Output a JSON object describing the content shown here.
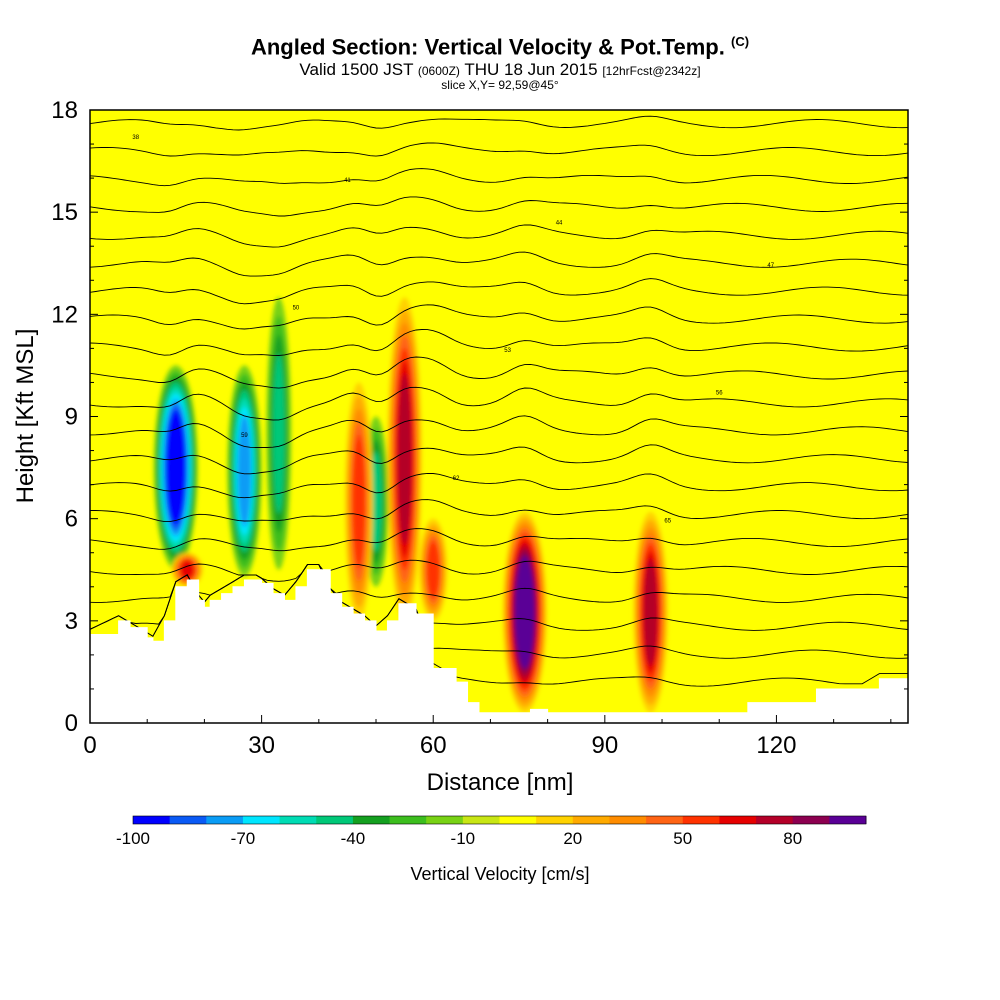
{
  "title": {
    "main": "Angled Section: Vertical Velocity & Pot.Temp.",
    "main_suffix": "(C)",
    "valid_prefix": "Valid 1500 JST",
    "valid_zulu": "(0600Z)",
    "valid_date": "THU 18 Jun 2015",
    "forecast": "[12hrFcst@2342z]",
    "slice": "slice X,Y= 92,59@45°"
  },
  "chart_data": {
    "type": "heatmap",
    "xlabel": "Distance [nm]",
    "ylabel": "Height [Kft MSL]",
    "xlim": [
      0,
      143
    ],
    "ylim": [
      0,
      18
    ],
    "x_ticks": [
      0,
      30,
      60,
      90,
      120
    ],
    "y_ticks": [
      0,
      3,
      6,
      9,
      12,
      15,
      18
    ],
    "colorbar": {
      "label": "Vertical Velocity [cm/s]",
      "tick_labels": [
        "-100",
        "-70",
        "-40",
        "-10",
        "20",
        "50",
        "80"
      ],
      "tick_values": [
        -100,
        -70,
        -40,
        -10,
        20,
        50,
        80
      ],
      "levels": [
        -100,
        -90,
        -80,
        -70,
        -60,
        -50,
        -40,
        -30,
        -20,
        -10,
        0,
        10,
        20,
        30,
        40,
        50,
        60,
        70,
        80,
        90,
        100
      ],
      "colors": [
        "#0000ff",
        "#0a5af5",
        "#0a9cf5",
        "#00e6ff",
        "#00dcb4",
        "#00c878",
        "#14a020",
        "#3cbe1e",
        "#78d214",
        "#c8e614",
        "#ffff00",
        "#ffd200",
        "#ffaa00",
        "#ff8c00",
        "#ff6414",
        "#ff3200",
        "#e60000",
        "#b40028",
        "#8c0050",
        "#5a0096"
      ]
    },
    "features": [
      {
        "kind": "downdraft",
        "x": 15,
        "y_base": 4.5,
        "y_top": 10.5,
        "min_cm_s": -100
      },
      {
        "kind": "downdraft",
        "x": 27,
        "y_base": 4.3,
        "y_top": 10.5,
        "min_cm_s": -70
      },
      {
        "kind": "downdraft",
        "x": 33,
        "y_base": 4.5,
        "y_top": 12.5,
        "min_cm_s": -40
      },
      {
        "kind": "downdraft",
        "x": 50,
        "y_base": 4.0,
        "y_top": 9.0,
        "min_cm_s": -40
      },
      {
        "kind": "updraft",
        "x": 17,
        "y_base": 4.0,
        "y_top": 5.0,
        "max_cm_s": 60
      },
      {
        "kind": "updraft",
        "x": 47,
        "y_base": 3.0,
        "y_top": 10.0,
        "max_cm_s": 50
      },
      {
        "kind": "updraft",
        "x": 55,
        "y_base": 3.0,
        "y_top": 12.5,
        "max_cm_s": 70
      },
      {
        "kind": "updraft",
        "x": 60,
        "y_base": 3.0,
        "y_top": 6.0,
        "max_cm_s": 50
      },
      {
        "kind": "updraft",
        "x": 76,
        "y_base": 0.3,
        "y_top": 6.2,
        "max_cm_s": 100
      },
      {
        "kind": "updraft",
        "x": 98,
        "y_base": 0.3,
        "y_top": 6.2,
        "max_cm_s": 70
      }
    ],
    "terrain": {
      "x": [
        0,
        5,
        7,
        10,
        11,
        13,
        15,
        17,
        19,
        20,
        21,
        23,
        25,
        27,
        28,
        29,
        30,
        32,
        34,
        36,
        38,
        40,
        42,
        44,
        46,
        48,
        50,
        52,
        54,
        57,
        60,
        64,
        66,
        68,
        72,
        75,
        77,
        80,
        86,
        92,
        100,
        110,
        114,
        115,
        118,
        126,
        127,
        135,
        138,
        143
      ],
      "height_kft": [
        2.6,
        3.0,
        2.8,
        2.5,
        2.4,
        3.0,
        4.0,
        4.2,
        3.6,
        3.4,
        3.6,
        3.8,
        4.0,
        4.2,
        4.2,
        4.2,
        4.1,
        3.8,
        3.6,
        4.0,
        4.5,
        4.5,
        3.8,
        3.4,
        3.2,
        3.0,
        2.7,
        3.0,
        3.5,
        3.2,
        1.6,
        1.2,
        0.6,
        0.3,
        0.3,
        0.3,
        0.4,
        0.3,
        0.3,
        0.3,
        0.3,
        0.3,
        0.3,
        0.6,
        0.6,
        0.6,
        1.0,
        1.0,
        1.3,
        1.3
      ]
    },
    "isentropes": {
      "values_c": [
        38,
        41,
        44,
        47,
        50,
        53,
        56,
        59,
        62,
        65,
        68,
        71,
        74,
        77,
        80,
        83,
        86,
        89,
        92,
        95,
        98
      ],
      "labels_shown": [
        "38",
        "41",
        "44",
        "47",
        "50",
        "53",
        "56",
        "59",
        "62",
        "65"
      ],
      "color": "#000000"
    },
    "grid": false,
    "legend": "colorbar-bottom"
  }
}
